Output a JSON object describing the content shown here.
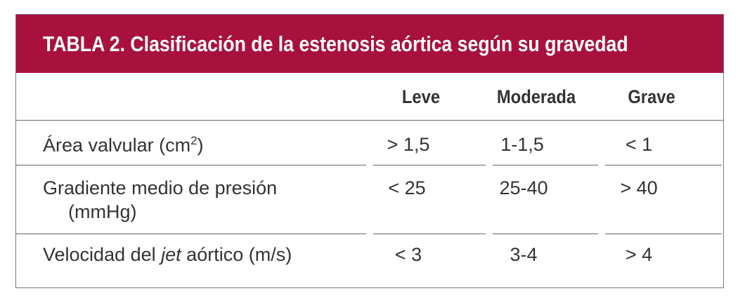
{
  "title": "TABLA 2. Clasificación de la estenosis aórtica según su gravedad",
  "table": {
    "columns": [
      "Leve",
      "Moderada",
      "Grave"
    ],
    "rows": [
      {
        "label": [
          "Área valvular (cm",
          "2",
          ")"
        ],
        "cells": [
          "> 1,5",
          "1-1,5",
          "< 1"
        ]
      },
      {
        "label": [
          "Gradiente medio de presión",
          "(mmHg)"
        ],
        "cells": [
          "< 25",
          "25-40",
          "> 40"
        ]
      },
      {
        "label": [
          "Velocidad del ",
          "jet",
          " aórtico (m/s)"
        ],
        "cells": [
          "< 3",
          "3-4",
          "> 4"
        ]
      }
    ]
  }
}
